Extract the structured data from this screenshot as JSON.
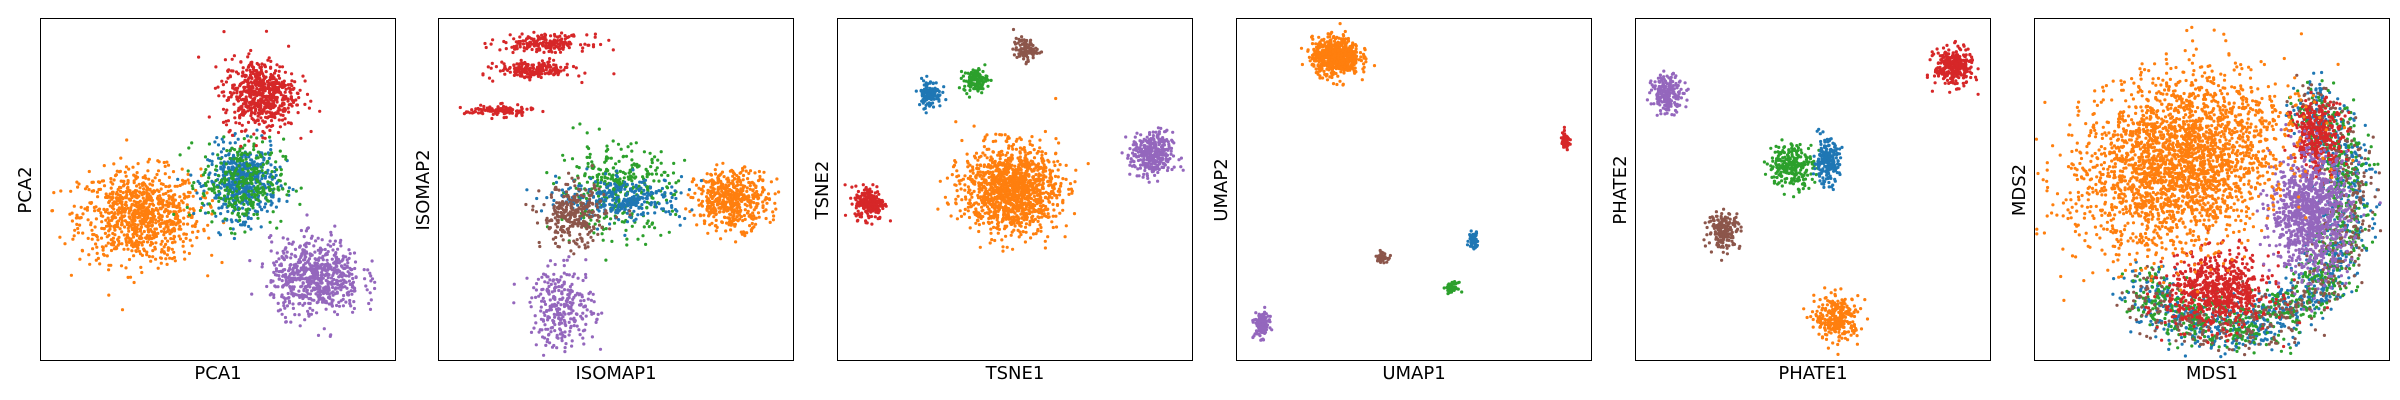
{
  "colors": {
    "blue": "#1f77b4",
    "orange": "#ff7f0e",
    "green": "#2ca02c",
    "red": "#d62728",
    "purple": "#9467bd",
    "brown": "#8c564b"
  },
  "chart_data": [
    {
      "type": "scatter",
      "title": "",
      "xlabel": "PCA1",
      "ylabel": "PCA2",
      "ticks": "none",
      "clusters": [
        {
          "color": "orange",
          "shape": "ellipse",
          "cx": 0.28,
          "cy": 0.42,
          "rx": 0.2,
          "ry": 0.16,
          "n": 900,
          "spread": 0.95
        },
        {
          "color": "blue",
          "shape": "ellipse",
          "cx": 0.57,
          "cy": 0.52,
          "rx": 0.12,
          "ry": 0.13,
          "n": 500,
          "spread": 0.9
        },
        {
          "color": "green",
          "shape": "ellipse",
          "cx": 0.57,
          "cy": 0.52,
          "rx": 0.13,
          "ry": 0.14,
          "n": 300,
          "spread": 1.0
        },
        {
          "color": "red",
          "shape": "ellipse",
          "cx": 0.62,
          "cy": 0.78,
          "rx": 0.12,
          "ry": 0.12,
          "n": 600,
          "spread": 0.95
        },
        {
          "color": "purple",
          "shape": "ellipse",
          "cx": 0.78,
          "cy": 0.24,
          "rx": 0.15,
          "ry": 0.13,
          "n": 650,
          "spread": 0.95
        }
      ]
    },
    {
      "type": "scatter",
      "title": "",
      "xlabel": "ISOMAP1",
      "ylabel": "ISOMAP2",
      "ticks": "none",
      "clusters": [
        {
          "color": "red",
          "shape": "ellipse",
          "cx": 0.3,
          "cy": 0.93,
          "rx": 0.15,
          "ry": 0.03,
          "n": 200,
          "spread": 0.9
        },
        {
          "color": "red",
          "shape": "ellipse",
          "cx": 0.27,
          "cy": 0.85,
          "rx": 0.13,
          "ry": 0.03,
          "n": 200,
          "spread": 0.9
        },
        {
          "color": "red",
          "shape": "ellipse",
          "cx": 0.17,
          "cy": 0.73,
          "rx": 0.12,
          "ry": 0.02,
          "n": 120,
          "spread": 0.9
        },
        {
          "color": "orange",
          "shape": "ellipse",
          "cx": 0.83,
          "cy": 0.47,
          "rx": 0.12,
          "ry": 0.1,
          "n": 500,
          "spread": 0.95
        },
        {
          "color": "green",
          "shape": "ellipse",
          "cx": 0.5,
          "cy": 0.5,
          "rx": 0.18,
          "ry": 0.14,
          "n": 350,
          "spread": 1.0
        },
        {
          "color": "blue",
          "shape": "ellipse",
          "cx": 0.52,
          "cy": 0.47,
          "rx": 0.2,
          "ry": 0.07,
          "n": 300,
          "spread": 1.0
        },
        {
          "color": "brown",
          "shape": "ellipse",
          "cx": 0.38,
          "cy": 0.42,
          "rx": 0.1,
          "ry": 0.1,
          "n": 280,
          "spread": 1.0
        },
        {
          "color": "purple",
          "shape": "ellipse",
          "cx": 0.35,
          "cy": 0.15,
          "rx": 0.1,
          "ry": 0.13,
          "n": 280,
          "spread": 1.0
        }
      ]
    },
    {
      "type": "scatter",
      "title": "",
      "xlabel": "TSNE1",
      "ylabel": "TSNE2",
      "ticks": "none",
      "clusters": [
        {
          "color": "orange",
          "shape": "ellipse",
          "cx": 0.49,
          "cy": 0.5,
          "rx": 0.16,
          "ry": 0.15,
          "n": 1300,
          "spread": 0.92
        },
        {
          "color": "purple",
          "shape": "ellipse",
          "cx": 0.89,
          "cy": 0.6,
          "rx": 0.07,
          "ry": 0.08,
          "n": 350,
          "spread": 0.92
        },
        {
          "color": "red",
          "shape": "ellipse",
          "cx": 0.09,
          "cy": 0.46,
          "rx": 0.05,
          "ry": 0.06,
          "n": 220,
          "spread": 0.92
        },
        {
          "color": "blue",
          "shape": "ellipse",
          "cx": 0.26,
          "cy": 0.78,
          "rx": 0.04,
          "ry": 0.05,
          "n": 120,
          "spread": 0.92
        },
        {
          "color": "green",
          "shape": "ellipse",
          "cx": 0.39,
          "cy": 0.82,
          "rx": 0.04,
          "ry": 0.04,
          "n": 120,
          "spread": 0.92
        },
        {
          "color": "brown",
          "shape": "ellipse",
          "cx": 0.53,
          "cy": 0.91,
          "rx": 0.04,
          "ry": 0.04,
          "n": 100,
          "spread": 0.92
        }
      ]
    },
    {
      "type": "scatter",
      "title": "",
      "xlabel": "UMAP1",
      "ylabel": "UMAP2",
      "ticks": "none",
      "clusters": [
        {
          "color": "orange",
          "shape": "ellipse",
          "cx": 0.28,
          "cy": 0.89,
          "rx": 0.08,
          "ry": 0.065,
          "n": 700,
          "spread": 0.92
        },
        {
          "color": "red",
          "shape": "ellipse",
          "cx": 0.93,
          "cy": 0.64,
          "rx": 0.015,
          "ry": 0.03,
          "n": 70,
          "spread": 0.92
        },
        {
          "color": "blue",
          "shape": "ellipse",
          "cx": 0.67,
          "cy": 0.35,
          "rx": 0.015,
          "ry": 0.03,
          "n": 70,
          "spread": 0.92
        },
        {
          "color": "brown",
          "shape": "ellipse",
          "cx": 0.41,
          "cy": 0.3,
          "rx": 0.02,
          "ry": 0.018,
          "n": 50,
          "spread": 0.92
        },
        {
          "color": "green",
          "shape": "ellipse",
          "cx": 0.61,
          "cy": 0.21,
          "rx": 0.02,
          "ry": 0.018,
          "n": 50,
          "spread": 0.92
        },
        {
          "color": "purple",
          "shape": "ellipse",
          "cx": 0.07,
          "cy": 0.1,
          "rx": 0.025,
          "ry": 0.045,
          "n": 140,
          "spread": 0.92
        }
      ]
    },
    {
      "type": "scatter",
      "title": "",
      "xlabel": "PHATE1",
      "ylabel": "PHATE2",
      "ticks": "none",
      "clusters": [
        {
          "color": "red",
          "shape": "ellipse",
          "cx": 0.9,
          "cy": 0.86,
          "rx": 0.06,
          "ry": 0.06,
          "n": 300,
          "spread": 1.0
        },
        {
          "color": "purple",
          "shape": "ellipse",
          "cx": 0.09,
          "cy": 0.78,
          "rx": 0.05,
          "ry": 0.06,
          "n": 200,
          "spread": 1.0
        },
        {
          "color": "green",
          "shape": "ellipse",
          "cx": 0.44,
          "cy": 0.57,
          "rx": 0.07,
          "ry": 0.07,
          "n": 250,
          "spread": 1.0
        },
        {
          "color": "blue",
          "shape": "ellipse",
          "cx": 0.54,
          "cy": 0.58,
          "rx": 0.04,
          "ry": 0.07,
          "n": 220,
          "spread": 1.0
        },
        {
          "color": "brown",
          "shape": "ellipse",
          "cx": 0.25,
          "cy": 0.38,
          "rx": 0.05,
          "ry": 0.06,
          "n": 180,
          "spread": 1.0
        },
        {
          "color": "orange",
          "shape": "ellipse",
          "cx": 0.57,
          "cy": 0.12,
          "rx": 0.07,
          "ry": 0.07,
          "n": 280,
          "spread": 1.0
        }
      ]
    },
    {
      "type": "scatter",
      "title": "",
      "xlabel": "MDS1",
      "ylabel": "MDS2",
      "ticks": "none",
      "clusters": [
        {
          "color": "blue",
          "shape": "crescent",
          "cx": 0.55,
          "cy": 0.47,
          "rx": 0.36,
          "ry": 0.4,
          "n": 900,
          "spread": 1.0
        },
        {
          "color": "green",
          "shape": "crescent",
          "cx": 0.55,
          "cy": 0.47,
          "rx": 0.36,
          "ry": 0.4,
          "n": 800,
          "spread": 1.0
        },
        {
          "color": "brown",
          "shape": "crescent",
          "cx": 0.55,
          "cy": 0.47,
          "rx": 0.36,
          "ry": 0.4,
          "n": 500,
          "spread": 1.0
        },
        {
          "color": "red",
          "shape": "ellipse",
          "cx": 0.52,
          "cy": 0.2,
          "rx": 0.16,
          "ry": 0.12,
          "n": 700,
          "spread": 1.0
        },
        {
          "color": "red",
          "shape": "ellipse",
          "cx": 0.8,
          "cy": 0.65,
          "rx": 0.08,
          "ry": 0.12,
          "n": 350,
          "spread": 1.0
        },
        {
          "color": "purple",
          "shape": "ellipse",
          "cx": 0.78,
          "cy": 0.43,
          "rx": 0.13,
          "ry": 0.2,
          "n": 1000,
          "spread": 0.95
        },
        {
          "color": "orange",
          "shape": "tilted",
          "cx": 0.41,
          "cy": 0.58,
          "rx": 0.33,
          "ry": 0.26,
          "n": 2600,
          "spread": 1.0
        }
      ]
    }
  ]
}
